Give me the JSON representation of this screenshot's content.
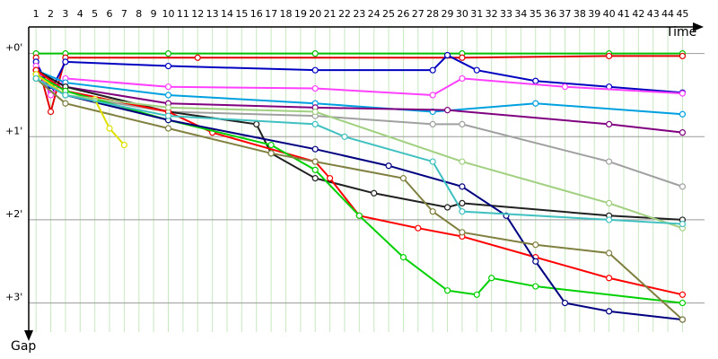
{
  "chart_data": {
    "type": "line",
    "x_label": "Time",
    "y_label": "Gap",
    "xlim": [
      0.5,
      46.5
    ],
    "xticks": [
      1,
      2,
      3,
      4,
      5,
      6,
      7,
      8,
      9,
      10,
      11,
      12,
      13,
      14,
      15,
      16,
      17,
      18,
      19,
      20,
      21,
      22,
      23,
      24,
      25,
      26,
      27,
      28,
      29,
      30,
      31,
      32,
      33,
      34,
      35,
      36,
      37,
      38,
      39,
      40,
      41,
      42,
      43,
      44,
      45
    ],
    "ylim": [
      -0.32,
      3.35
    ],
    "yticks": [
      {
        "value": 0,
        "label": "+0'"
      },
      {
        "value": 1,
        "label": "+1'"
      },
      {
        "value": 2,
        "label": "+2'"
      },
      {
        "value": 3,
        "label": "+3'"
      }
    ],
    "grid": true,
    "series": [
      {
        "color": "#00c000",
        "x": [
          1,
          3,
          10,
          20,
          30,
          40,
          45
        ],
        "values": [
          0,
          0,
          0,
          0,
          0,
          0,
          0
        ]
      },
      {
        "color": "#e00000",
        "x": [
          1,
          2,
          3,
          12,
          30,
          40,
          45
        ],
        "values": [
          0.05,
          0.7,
          0.05,
          0.05,
          0.05,
          0.03,
          0.03
        ]
      },
      {
        "color": "#0000c0",
        "x": [
          1,
          2,
          3,
          10,
          20,
          28,
          29,
          31,
          35,
          40,
          45
        ],
        "values": [
          0.1,
          0.45,
          0.1,
          0.15,
          0.2,
          0.2,
          0.02,
          0.2,
          0.33,
          0.4,
          0.47
        ]
      },
      {
        "color": "#ff40ff",
        "x": [
          1,
          2,
          3,
          10,
          20,
          28,
          30,
          37,
          45
        ],
        "values": [
          0.15,
          0.5,
          0.3,
          0.4,
          0.42,
          0.5,
          0.3,
          0.4,
          0.48
        ]
      },
      {
        "color": "#00a0e0",
        "x": [
          1,
          3,
          10,
          20,
          28,
          35,
          45
        ],
        "values": [
          0.2,
          0.35,
          0.5,
          0.6,
          0.7,
          0.6,
          0.73
        ]
      },
      {
        "color": "#800080",
        "x": [
          1,
          3,
          10,
          20,
          29,
          40,
          45
        ],
        "values": [
          0.2,
          0.4,
          0.6,
          0.65,
          0.68,
          0.85,
          0.95
        ]
      },
      {
        "color": "#a0a0a0",
        "x": [
          1,
          3,
          10,
          20,
          28,
          30,
          40,
          45
        ],
        "values": [
          0.25,
          0.5,
          0.7,
          0.75,
          0.85,
          0.85,
          1.3,
          1.6
        ]
      },
      {
        "color": "#202020",
        "x": [
          1,
          3,
          10,
          16,
          17,
          20,
          24,
          29,
          30,
          40,
          45
        ],
        "values": [
          0.2,
          0.4,
          0.7,
          0.85,
          1.2,
          1.5,
          1.68,
          1.85,
          1.8,
          1.95,
          2.0
        ]
      },
      {
        "color": "#ff0000",
        "x": [
          1,
          3,
          10,
          13,
          20,
          21,
          23,
          27,
          30,
          35,
          40,
          45
        ],
        "values": [
          0.2,
          0.45,
          0.7,
          0.95,
          1.3,
          1.5,
          1.95,
          2.1,
          2.2,
          2.45,
          2.7,
          2.9
        ]
      },
      {
        "color": "#00d000",
        "x": [
          1,
          3,
          10,
          17,
          20,
          23,
          26,
          29,
          31,
          32,
          35,
          45
        ],
        "values": [
          0.25,
          0.45,
          0.8,
          1.1,
          1.4,
          1.95,
          2.45,
          2.85,
          2.9,
          2.7,
          2.8,
          3.0
        ]
      },
      {
        "color": "#000080",
        "x": [
          1,
          3,
          10,
          20,
          25,
          30,
          33,
          35,
          37,
          40,
          45
        ],
        "values": [
          0.3,
          0.5,
          0.8,
          1.15,
          1.35,
          1.6,
          1.95,
          2.5,
          3.0,
          3.1,
          3.2
        ]
      },
      {
        "color": "#808040",
        "x": [
          1,
          3,
          10,
          17,
          20,
          26,
          28,
          30,
          35,
          40,
          45
        ],
        "values": [
          0.3,
          0.6,
          0.9,
          1.2,
          1.3,
          1.5,
          1.9,
          2.15,
          2.3,
          2.4,
          3.2
        ]
      },
      {
        "color": "#e0e000",
        "x": [
          1,
          3,
          5,
          6,
          7
        ],
        "values": [
          0.25,
          0.5,
          0.55,
          0.9,
          1.1
        ]
      },
      {
        "color": "#a0d080",
        "x": [
          1,
          3,
          10,
          20,
          30,
          40,
          45
        ],
        "values": [
          0.3,
          0.5,
          0.65,
          0.7,
          1.3,
          1.8,
          2.1
        ]
      },
      {
        "color": "#40c0c0",
        "x": [
          1,
          3,
          10,
          20,
          22,
          28,
          30,
          40,
          45
        ],
        "values": [
          0.3,
          0.5,
          0.75,
          0.85,
          1.0,
          1.3,
          1.9,
          2.0,
          2.05
        ]
      }
    ]
  }
}
